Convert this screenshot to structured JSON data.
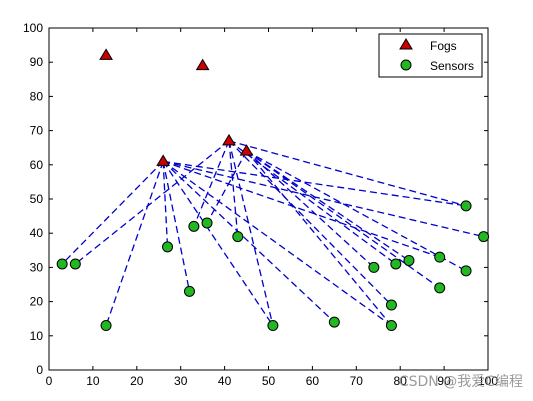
{
  "chart_data": {
    "type": "scatter",
    "xlim": [
      0,
      100
    ],
    "ylim": [
      0,
      100
    ],
    "xticks": [
      0,
      10,
      20,
      30,
      40,
      50,
      60,
      70,
      80,
      90,
      100
    ],
    "yticks": [
      0,
      10,
      20,
      30,
      40,
      50,
      60,
      70,
      80,
      90,
      100
    ],
    "grid": false,
    "legend_position": "top-right",
    "series": [
      {
        "name": "Fogs",
        "marker": "triangle",
        "color": "#cc0000",
        "points": [
          [
            13,
            92
          ],
          [
            35,
            89
          ],
          [
            26,
            61
          ],
          [
            41,
            67
          ],
          [
            45,
            64
          ]
        ]
      },
      {
        "name": "Sensors",
        "marker": "circle",
        "color": "#22b822",
        "points": [
          [
            3,
            31
          ],
          [
            6,
            31
          ],
          [
            13,
            13
          ],
          [
            27,
            36
          ],
          [
            32,
            23
          ],
          [
            33,
            42
          ],
          [
            36,
            43
          ],
          [
            43,
            39
          ],
          [
            51,
            13
          ],
          [
            65,
            14
          ],
          [
            74,
            30
          ],
          [
            78,
            13
          ],
          [
            78,
            19
          ],
          [
            79,
            31
          ],
          [
            82,
            32
          ],
          [
            89,
            33
          ],
          [
            89,
            24
          ],
          [
            95,
            48
          ],
          [
            95,
            29
          ],
          [
            99,
            39
          ]
        ]
      }
    ],
    "links": {
      "color": "#0000cc",
      "style": "dashed",
      "edges": [
        [
          [
            26,
            61
          ],
          [
            3,
            31
          ]
        ],
        [
          [
            26,
            61
          ],
          [
            13,
            13
          ]
        ],
        [
          [
            26,
            61
          ],
          [
            27,
            36
          ]
        ],
        [
          [
            26,
            61
          ],
          [
            32,
            23
          ]
        ],
        [
          [
            26,
            61
          ],
          [
            51,
            13
          ]
        ],
        [
          [
            26,
            61
          ],
          [
            65,
            14
          ]
        ],
        [
          [
            26,
            61
          ],
          [
            78,
            13
          ]
        ],
        [
          [
            26,
            61
          ],
          [
            89,
            33
          ]
        ],
        [
          [
            26,
            61
          ],
          [
            95,
            48
          ]
        ],
        [
          [
            26,
            61
          ],
          [
            99,
            39
          ]
        ],
        [
          [
            41,
            67
          ],
          [
            6,
            31
          ]
        ],
        [
          [
            41,
            67
          ],
          [
            33,
            42
          ]
        ],
        [
          [
            41,
            67
          ],
          [
            43,
            39
          ]
        ],
        [
          [
            41,
            67
          ],
          [
            51,
            13
          ]
        ],
        [
          [
            41,
            67
          ],
          [
            78,
            19
          ]
        ],
        [
          [
            41,
            67
          ],
          [
            79,
            31
          ]
        ],
        [
          [
            41,
            67
          ],
          [
            95,
            48
          ]
        ],
        [
          [
            45,
            64
          ],
          [
            36,
            43
          ]
        ],
        [
          [
            45,
            64
          ],
          [
            74,
            30
          ]
        ],
        [
          [
            45,
            64
          ],
          [
            78,
            13
          ]
        ],
        [
          [
            45,
            64
          ],
          [
            82,
            32
          ]
        ],
        [
          [
            45,
            64
          ],
          [
            89,
            24
          ]
        ],
        [
          [
            45,
            64
          ],
          [
            95,
            29
          ]
        ]
      ]
    }
  },
  "watermark": "CSDN @我爱C编程"
}
